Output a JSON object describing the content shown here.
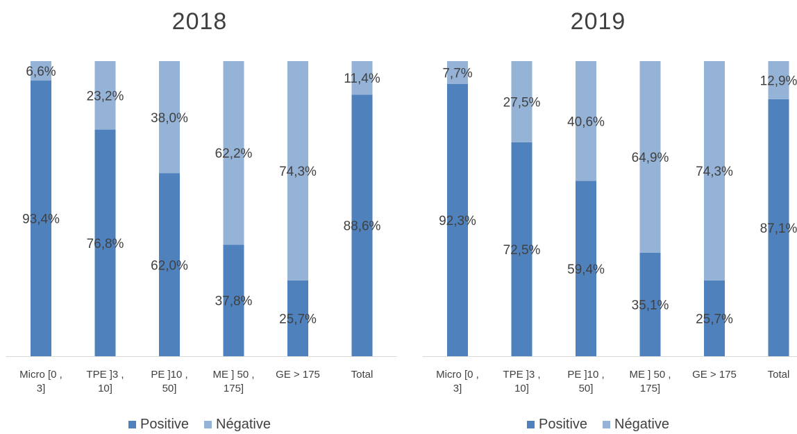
{
  "colors": {
    "positive": "#4f81bd",
    "negative": "#95b3d7",
    "text": "#404040",
    "axis": "#d9d9d9"
  },
  "chart_data": [
    {
      "type": "bar",
      "stacked": true,
      "title": "2018",
      "categories": [
        [
          "Micro [0 ,",
          "3]"
        ],
        [
          "TPE  ]3 ,",
          "10]"
        ],
        [
          "PE  ]10 ,",
          "50]"
        ],
        [
          "ME ] 50 ,",
          "175]"
        ],
        [
          "GE > 175"
        ],
        [
          "Total"
        ]
      ],
      "series": [
        {
          "name": "Positive",
          "values": [
            93.4,
            76.8,
            62.0,
            37.8,
            25.7,
            88.6
          ],
          "labels": [
            "93,4%",
            "76,8%",
            "62,0%",
            "37,8%",
            "25,7%",
            "88,6%"
          ]
        },
        {
          "name": "Négative",
          "values": [
            6.6,
            23.2,
            38.0,
            62.2,
            74.3,
            11.4
          ],
          "labels": [
            "6,6%",
            "23,2%",
            "38,0%",
            "62,2%",
            "74,3%",
            "11,4%"
          ]
        }
      ],
      "ylim": [
        0,
        100
      ],
      "legend": "bottom",
      "grid": false
    },
    {
      "type": "bar",
      "stacked": true,
      "title": "2019",
      "categories": [
        [
          "Micro [0 ,",
          "3]"
        ],
        [
          "TPE  ]3 ,",
          "10]"
        ],
        [
          "PE  ]10 ,",
          "50]"
        ],
        [
          "ME ] 50 ,",
          "175]"
        ],
        [
          "GE > 175"
        ],
        [
          "Total"
        ]
      ],
      "series": [
        {
          "name": "Positive",
          "values": [
            92.3,
            72.5,
            59.4,
            35.1,
            25.7,
            87.1
          ],
          "labels": [
            "92,3%",
            "72,5%",
            "59,4%",
            "35,1%",
            "25,7%",
            "87,1%"
          ]
        },
        {
          "name": "Négative",
          "values": [
            7.7,
            27.5,
            40.6,
            64.9,
            74.3,
            12.9
          ],
          "labels": [
            "7,7%",
            "27,5%",
            "40,6%",
            "64,9%",
            "74,3%",
            "12,9%"
          ]
        }
      ],
      "ylim": [
        0,
        100
      ],
      "legend": "bottom",
      "grid": false
    }
  ]
}
